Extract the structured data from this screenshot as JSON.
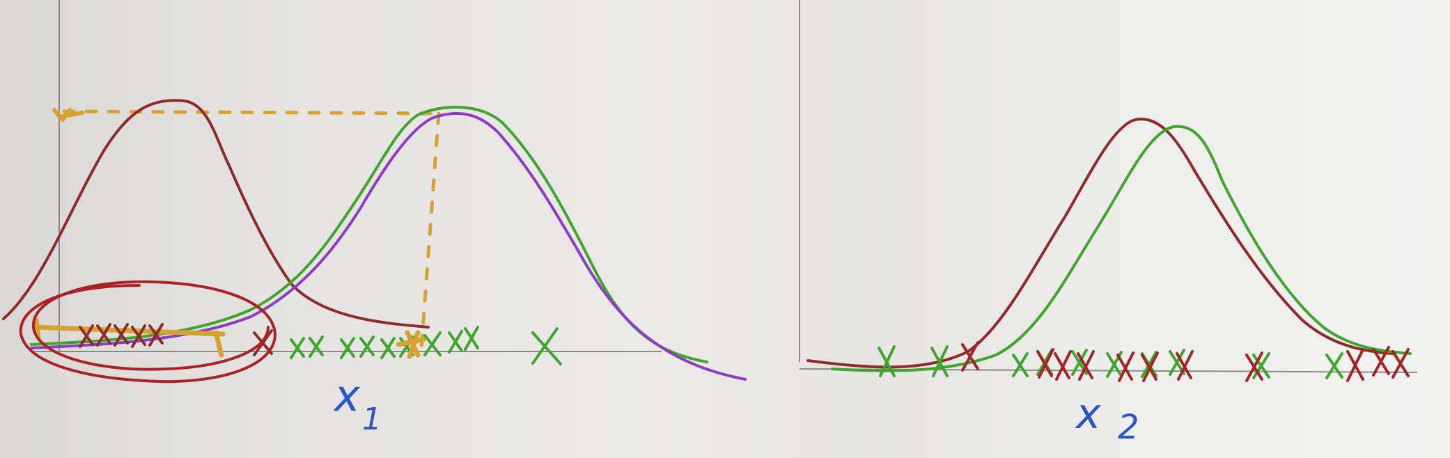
{
  "colors": {
    "background": "#e8e7e5",
    "axis": "#7a7a7a",
    "red": "#8e2a2a",
    "green": "#3fa52c",
    "purple": "#8b3fc0",
    "orange": "#d8a233",
    "blue": "#2a56c4"
  },
  "labels": {
    "x1": "x",
    "x1_sub": "1",
    "x2": "x",
    "x2_sub": "2"
  },
  "marks": {
    "cross": "x"
  }
}
